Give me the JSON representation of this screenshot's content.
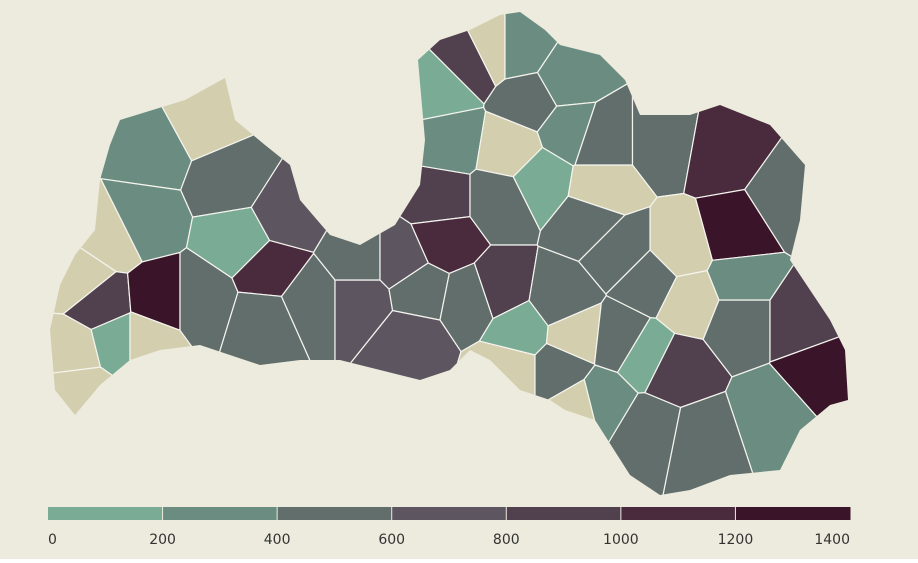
{
  "chart_data": {
    "type": "choropleth",
    "values": [
      300,
      null,
      450,
      350,
      null,
      null,
      850,
      1350,
      null,
      150,
      null,
      null,
      500,
      150,
      1150,
      650,
      400,
      550,
      650,
      700,
      500,
      550,
      900,
      1100,
      600,
      250,
      800,
      null,
      150,
      350,
      400,
      null,
      200,
      300,
      500,
      150,
      400,
      null,
      400,
      500,
      1100,
      1250,
      550,
      null,
      500,
      850,
      150,
      500,
      400,
      null,
      null,
      400,
      450,
      150,
      null,
      850,
      450,
      950,
      1250,
      300,
      450,
      400,
      350,
      null,
      300,
      500
    ],
    "legend_ticks": [
      0,
      200,
      400,
      600,
      800,
      1000,
      1200,
      1400
    ],
    "legend_colors": [
      "#7aab95",
      "#6b8c80",
      "#626e6c",
      "#5d5660",
      "#51404d",
      "#4a2b3d",
      "#3a1428"
    ],
    "no_data_color": "#d3cfae"
  }
}
